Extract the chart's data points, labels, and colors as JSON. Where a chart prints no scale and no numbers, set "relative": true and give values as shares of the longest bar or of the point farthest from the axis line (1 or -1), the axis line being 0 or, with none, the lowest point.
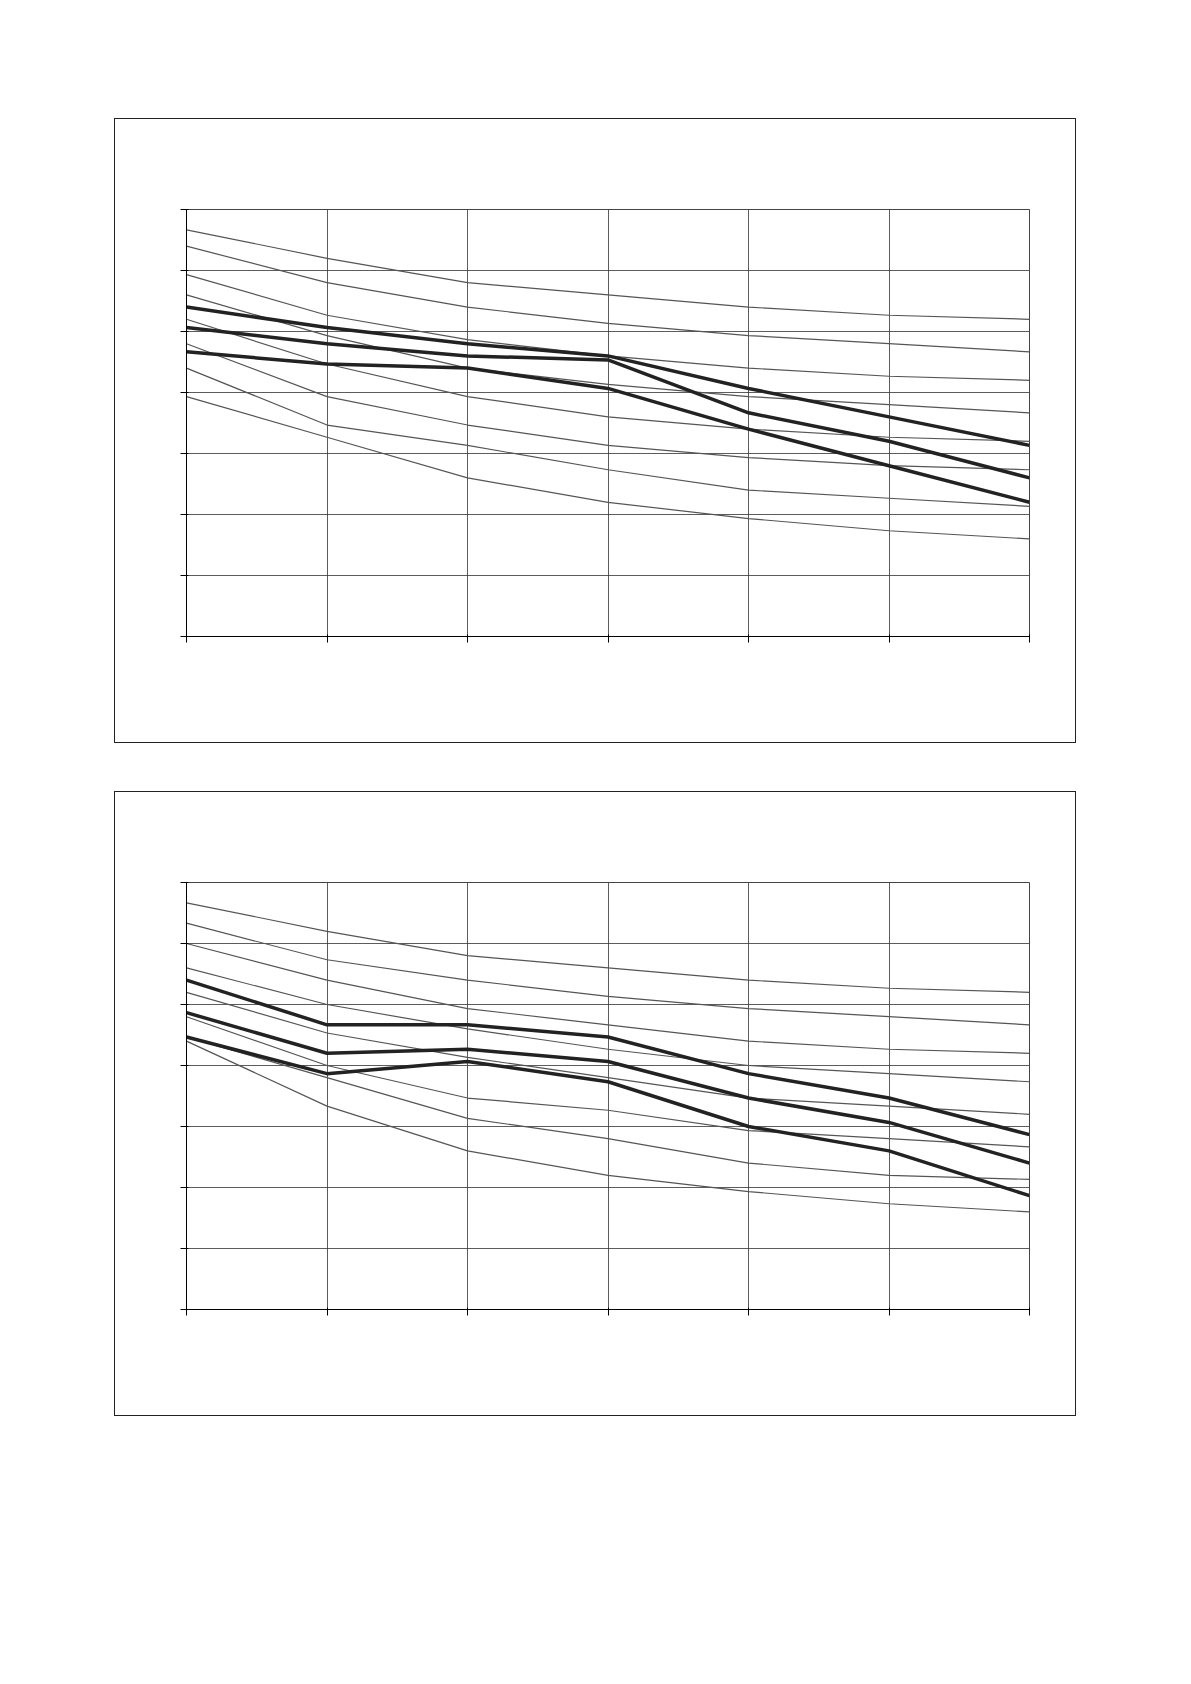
{
  "chart_data": [
    {
      "type": "line",
      "relative": true,
      "grid": true,
      "marker": "none",
      "line_style": "solid",
      "categories": [
        null,
        null,
        null,
        null,
        null,
        null,
        null
      ],
      "series": [
        {
          "color": "#555555",
          "values": [
            1.0,
            0.93,
            0.87,
            0.84,
            0.81,
            0.79,
            0.78
          ]
        },
        {
          "color": "#555555",
          "values": [
            0.96,
            0.87,
            0.81,
            0.77,
            0.74,
            0.72,
            0.7
          ]
        },
        {
          "color": "#555555",
          "values": [
            0.89,
            0.79,
            0.73,
            0.69,
            0.66,
            0.64,
            0.63
          ]
        },
        {
          "color": "#555555",
          "values": [
            0.84,
            0.74,
            0.66,
            0.62,
            0.59,
            0.57,
            0.55
          ]
        },
        {
          "color": "#555555",
          "values": [
            0.78,
            0.67,
            0.59,
            0.54,
            0.51,
            0.49,
            0.48
          ]
        },
        {
          "color": "#555555",
          "values": [
            0.72,
            0.59,
            0.52,
            0.47,
            0.44,
            0.42,
            0.41
          ]
        },
        {
          "color": "#555555",
          "values": [
            0.66,
            0.52,
            0.47,
            0.41,
            0.36,
            0.34,
            0.32
          ]
        },
        {
          "color": "#555555",
          "values": [
            0.59,
            0.49,
            0.39,
            0.33,
            0.29,
            0.26,
            0.24
          ]
        },
        {
          "color": "#222222",
          "values": [
            0.81,
            0.76,
            0.72,
            0.69,
            0.61,
            0.54,
            0.47
          ]
        },
        {
          "color": "#222222",
          "values": [
            0.76,
            0.72,
            0.69,
            0.68,
            0.55,
            0.48,
            0.39
          ]
        },
        {
          "color": "#222222",
          "values": [
            0.7,
            0.67,
            0.66,
            0.61,
            0.51,
            0.42,
            0.33
          ]
        }
      ]
    },
    {
      "type": "line",
      "relative": true,
      "grid": true,
      "marker": "none",
      "line_style": "solid",
      "categories": [
        null,
        null,
        null,
        null,
        null,
        null,
        null
      ],
      "series": [
        {
          "color": "#555555",
          "values": [
            1.0,
            0.93,
            0.87,
            0.84,
            0.81,
            0.79,
            0.78
          ]
        },
        {
          "color": "#555555",
          "values": [
            0.95,
            0.86,
            0.81,
            0.77,
            0.74,
            0.72,
            0.7
          ]
        },
        {
          "color": "#555555",
          "values": [
            0.9,
            0.81,
            0.74,
            0.7,
            0.66,
            0.64,
            0.63
          ]
        },
        {
          "color": "#555555",
          "values": [
            0.84,
            0.75,
            0.69,
            0.64,
            0.6,
            0.58,
            0.56
          ]
        },
        {
          "color": "#555555",
          "values": [
            0.78,
            0.68,
            0.62,
            0.57,
            0.52,
            0.5,
            0.48
          ]
        },
        {
          "color": "#555555",
          "values": [
            0.72,
            0.6,
            0.52,
            0.49,
            0.44,
            0.42,
            0.4
          ]
        },
        {
          "color": "#555555",
          "values": [
            0.67,
            0.57,
            0.47,
            0.42,
            0.36,
            0.33,
            0.32
          ]
        },
        {
          "color": "#555555",
          "values": [
            0.66,
            0.5,
            0.39,
            0.33,
            0.29,
            0.26,
            0.24
          ]
        },
        {
          "color": "#222222",
          "values": [
            0.81,
            0.7,
            0.7,
            0.67,
            0.58,
            0.52,
            0.43
          ]
        },
        {
          "color": "#222222",
          "values": [
            0.73,
            0.63,
            0.64,
            0.61,
            0.52,
            0.46,
            0.36
          ]
        },
        {
          "color": "#222222",
          "values": [
            0.67,
            0.58,
            0.61,
            0.56,
            0.45,
            0.39,
            0.28
          ]
        }
      ]
    }
  ]
}
